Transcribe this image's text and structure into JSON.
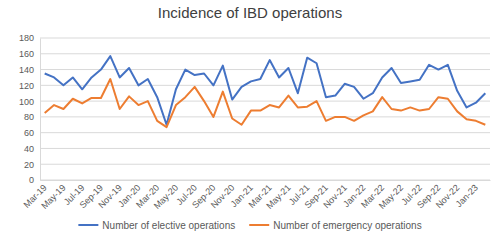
{
  "chart_data": {
    "type": "line",
    "title": "Incidence of IBD operations",
    "categories": [
      "Mar-19",
      null,
      "May-19",
      null,
      "Jul-19",
      null,
      "Sep-19",
      null,
      "Nov-19",
      null,
      "Jan-20",
      null,
      "Mar-20",
      null,
      "May-20",
      null,
      "Jul-20",
      null,
      "Sep-20",
      null,
      "Nov-20",
      null,
      "Jan-21",
      null,
      "Mar-21",
      null,
      "May-21",
      null,
      "Jul-21",
      null,
      "Sep-21",
      null,
      "Nov-21",
      null,
      "Jan-22",
      null,
      "Mar-22",
      null,
      "May-22",
      null,
      "Jul-22",
      null,
      "Sep-22",
      null,
      "Nov-22",
      null,
      "Jan-23",
      null
    ],
    "series": [
      {
        "name": "Number of elective operations",
        "color": "#4472c4",
        "values": [
          135,
          130,
          120,
          130,
          115,
          130,
          140,
          157,
          130,
          142,
          120,
          128,
          105,
          70,
          115,
          140,
          133,
          135,
          120,
          145,
          102,
          118,
          125,
          128,
          152,
          130,
          142,
          110,
          155,
          148,
          105,
          107,
          122,
          118,
          103,
          110,
          130,
          142,
          123,
          125,
          127,
          146,
          140,
          146,
          113,
          92,
          98,
          110
        ]
      },
      {
        "name": "Number of emergency operations",
        "color": "#ed7d31",
        "values": [
          85,
          95,
          90,
          103,
          97,
          104,
          104,
          128,
          90,
          106,
          95,
          100,
          75,
          67,
          95,
          105,
          118,
          100,
          80,
          112,
          78,
          70,
          88,
          88,
          95,
          92,
          107,
          92,
          93,
          100,
          75,
          80,
          80,
          75,
          82,
          87,
          105,
          90,
          88,
          92,
          88,
          90,
          105,
          103,
          87,
          77,
          75,
          70
        ]
      }
    ],
    "ylim": [
      0,
      180
    ],
    "yticks": [
      0,
      20,
      40,
      60,
      80,
      100,
      120,
      140,
      160,
      180
    ],
    "grid": true,
    "legend": "bottom"
  }
}
